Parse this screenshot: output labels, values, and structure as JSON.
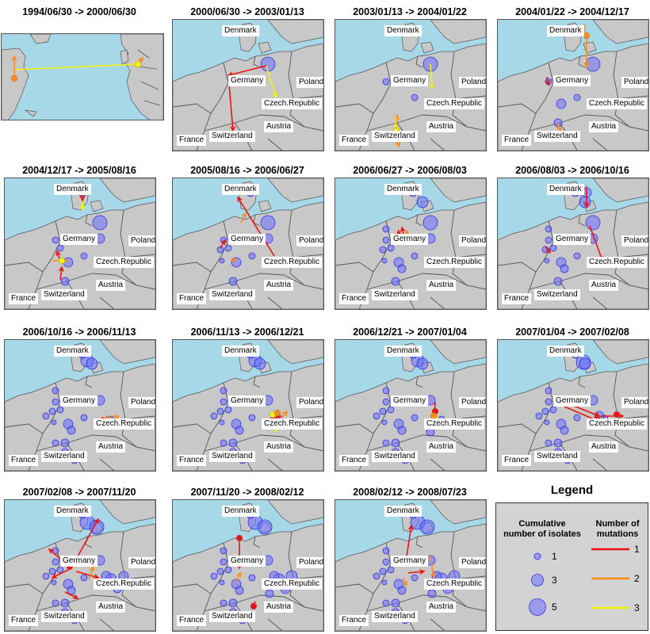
{
  "colors": {
    "sea": "#a7d8e8",
    "land": "#c8c8c8",
    "border": "#555555",
    "isolate_fill": "rgba(110,110,255,0.55)",
    "isolate_stroke": "#3333dd",
    "mut1": "#ee1111",
    "mut2": "#ff8c1a",
    "mut3": "#f2f20c"
  },
  "countries": {
    "denmark": "Denmark",
    "germany": "Germany",
    "poland": "Poland",
    "czech": "Czech.Republic",
    "austria": "Austria",
    "switzerland": "Switzerland",
    "france": "France"
  },
  "panels": [
    {
      "title": "1994/06/30 -> 2000/06/30"
    },
    {
      "title": "2000/06/30 -> 2003/01/13"
    },
    {
      "title": "2003/01/13 -> 2004/01/22"
    },
    {
      "title": "2004/01/22 -> 2004/12/17"
    },
    {
      "title": "2004/12/17 -> 2005/08/16"
    },
    {
      "title": "2005/08/16 -> 2006/06/27"
    },
    {
      "title": "2006/06/27 -> 2006/08/03"
    },
    {
      "title": "2006/08/03 -> 2006/10/16"
    },
    {
      "title": "2006/10/16 -> 2006/11/13"
    },
    {
      "title": "2006/11/13 -> 2006/12/21"
    },
    {
      "title": "2006/12/21 -> 2007/01/04"
    },
    {
      "title": "2007/01/04 -> 2007/02/08"
    },
    {
      "title": "2007/02/08 -> 2007/11/20"
    },
    {
      "title": "2007/11/20 -> 2008/02/12"
    },
    {
      "title": "2008/02/12 -> 2008/07/23"
    }
  ],
  "legend": {
    "title": "Legend",
    "isolates_header": "Cumulative number of isolates",
    "mutations_header": "Number of mutations",
    "isolate_sizes": [
      "1",
      "3",
      "5"
    ],
    "mutation_counts": [
      "1",
      "2",
      "3"
    ]
  }
}
